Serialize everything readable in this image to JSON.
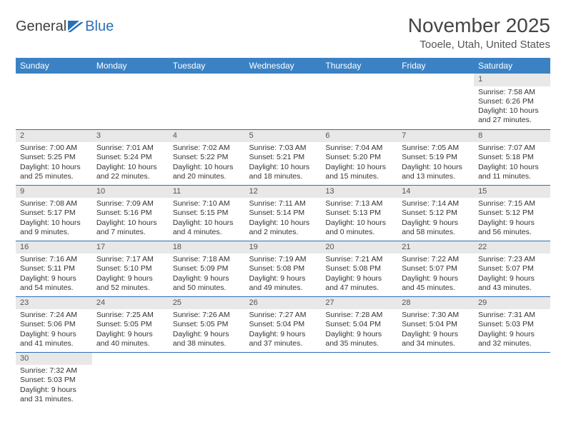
{
  "brand": {
    "part1": "General",
    "part2": "Blue"
  },
  "title": "November 2025",
  "location": "Tooele, Utah, United States",
  "colors": {
    "header_bg": "#3b82c4",
    "header_text": "#ffffff",
    "divider": "#2b6fb5",
    "daynum_bg": "#e8e8e8",
    "text": "#333333",
    "brand_gray": "#404040",
    "brand_blue": "#2b6fb5"
  },
  "dayNames": [
    "Sunday",
    "Monday",
    "Tuesday",
    "Wednesday",
    "Thursday",
    "Friday",
    "Saturday"
  ],
  "weeks": [
    [
      null,
      null,
      null,
      null,
      null,
      null,
      {
        "n": "1",
        "sr": "Sunrise: 7:58 AM",
        "ss": "Sunset: 6:26 PM",
        "dl1": "Daylight: 10 hours",
        "dl2": "and 27 minutes."
      }
    ],
    [
      {
        "n": "2",
        "sr": "Sunrise: 7:00 AM",
        "ss": "Sunset: 5:25 PM",
        "dl1": "Daylight: 10 hours",
        "dl2": "and 25 minutes."
      },
      {
        "n": "3",
        "sr": "Sunrise: 7:01 AM",
        "ss": "Sunset: 5:24 PM",
        "dl1": "Daylight: 10 hours",
        "dl2": "and 22 minutes."
      },
      {
        "n": "4",
        "sr": "Sunrise: 7:02 AM",
        "ss": "Sunset: 5:22 PM",
        "dl1": "Daylight: 10 hours",
        "dl2": "and 20 minutes."
      },
      {
        "n": "5",
        "sr": "Sunrise: 7:03 AM",
        "ss": "Sunset: 5:21 PM",
        "dl1": "Daylight: 10 hours",
        "dl2": "and 18 minutes."
      },
      {
        "n": "6",
        "sr": "Sunrise: 7:04 AM",
        "ss": "Sunset: 5:20 PM",
        "dl1": "Daylight: 10 hours",
        "dl2": "and 15 minutes."
      },
      {
        "n": "7",
        "sr": "Sunrise: 7:05 AM",
        "ss": "Sunset: 5:19 PM",
        "dl1": "Daylight: 10 hours",
        "dl2": "and 13 minutes."
      },
      {
        "n": "8",
        "sr": "Sunrise: 7:07 AM",
        "ss": "Sunset: 5:18 PM",
        "dl1": "Daylight: 10 hours",
        "dl2": "and 11 minutes."
      }
    ],
    [
      {
        "n": "9",
        "sr": "Sunrise: 7:08 AM",
        "ss": "Sunset: 5:17 PM",
        "dl1": "Daylight: 10 hours",
        "dl2": "and 9 minutes."
      },
      {
        "n": "10",
        "sr": "Sunrise: 7:09 AM",
        "ss": "Sunset: 5:16 PM",
        "dl1": "Daylight: 10 hours",
        "dl2": "and 7 minutes."
      },
      {
        "n": "11",
        "sr": "Sunrise: 7:10 AM",
        "ss": "Sunset: 5:15 PM",
        "dl1": "Daylight: 10 hours",
        "dl2": "and 4 minutes."
      },
      {
        "n": "12",
        "sr": "Sunrise: 7:11 AM",
        "ss": "Sunset: 5:14 PM",
        "dl1": "Daylight: 10 hours",
        "dl2": "and 2 minutes."
      },
      {
        "n": "13",
        "sr": "Sunrise: 7:13 AM",
        "ss": "Sunset: 5:13 PM",
        "dl1": "Daylight: 10 hours",
        "dl2": "and 0 minutes."
      },
      {
        "n": "14",
        "sr": "Sunrise: 7:14 AM",
        "ss": "Sunset: 5:12 PM",
        "dl1": "Daylight: 9 hours",
        "dl2": "and 58 minutes."
      },
      {
        "n": "15",
        "sr": "Sunrise: 7:15 AM",
        "ss": "Sunset: 5:12 PM",
        "dl1": "Daylight: 9 hours",
        "dl2": "and 56 minutes."
      }
    ],
    [
      {
        "n": "16",
        "sr": "Sunrise: 7:16 AM",
        "ss": "Sunset: 5:11 PM",
        "dl1": "Daylight: 9 hours",
        "dl2": "and 54 minutes."
      },
      {
        "n": "17",
        "sr": "Sunrise: 7:17 AM",
        "ss": "Sunset: 5:10 PM",
        "dl1": "Daylight: 9 hours",
        "dl2": "and 52 minutes."
      },
      {
        "n": "18",
        "sr": "Sunrise: 7:18 AM",
        "ss": "Sunset: 5:09 PM",
        "dl1": "Daylight: 9 hours",
        "dl2": "and 50 minutes."
      },
      {
        "n": "19",
        "sr": "Sunrise: 7:19 AM",
        "ss": "Sunset: 5:08 PM",
        "dl1": "Daylight: 9 hours",
        "dl2": "and 49 minutes."
      },
      {
        "n": "20",
        "sr": "Sunrise: 7:21 AM",
        "ss": "Sunset: 5:08 PM",
        "dl1": "Daylight: 9 hours",
        "dl2": "and 47 minutes."
      },
      {
        "n": "21",
        "sr": "Sunrise: 7:22 AM",
        "ss": "Sunset: 5:07 PM",
        "dl1": "Daylight: 9 hours",
        "dl2": "and 45 minutes."
      },
      {
        "n": "22",
        "sr": "Sunrise: 7:23 AM",
        "ss": "Sunset: 5:07 PM",
        "dl1": "Daylight: 9 hours",
        "dl2": "and 43 minutes."
      }
    ],
    [
      {
        "n": "23",
        "sr": "Sunrise: 7:24 AM",
        "ss": "Sunset: 5:06 PM",
        "dl1": "Daylight: 9 hours",
        "dl2": "and 41 minutes."
      },
      {
        "n": "24",
        "sr": "Sunrise: 7:25 AM",
        "ss": "Sunset: 5:05 PM",
        "dl1": "Daylight: 9 hours",
        "dl2": "and 40 minutes."
      },
      {
        "n": "25",
        "sr": "Sunrise: 7:26 AM",
        "ss": "Sunset: 5:05 PM",
        "dl1": "Daylight: 9 hours",
        "dl2": "and 38 minutes."
      },
      {
        "n": "26",
        "sr": "Sunrise: 7:27 AM",
        "ss": "Sunset: 5:04 PM",
        "dl1": "Daylight: 9 hours",
        "dl2": "and 37 minutes."
      },
      {
        "n": "27",
        "sr": "Sunrise: 7:28 AM",
        "ss": "Sunset: 5:04 PM",
        "dl1": "Daylight: 9 hours",
        "dl2": "and 35 minutes."
      },
      {
        "n": "28",
        "sr": "Sunrise: 7:30 AM",
        "ss": "Sunset: 5:04 PM",
        "dl1": "Daylight: 9 hours",
        "dl2": "and 34 minutes."
      },
      {
        "n": "29",
        "sr": "Sunrise: 7:31 AM",
        "ss": "Sunset: 5:03 PM",
        "dl1": "Daylight: 9 hours",
        "dl2": "and 32 minutes."
      }
    ],
    [
      {
        "n": "30",
        "sr": "Sunrise: 7:32 AM",
        "ss": "Sunset: 5:03 PM",
        "dl1": "Daylight: 9 hours",
        "dl2": "and 31 minutes."
      },
      null,
      null,
      null,
      null,
      null,
      null
    ]
  ]
}
